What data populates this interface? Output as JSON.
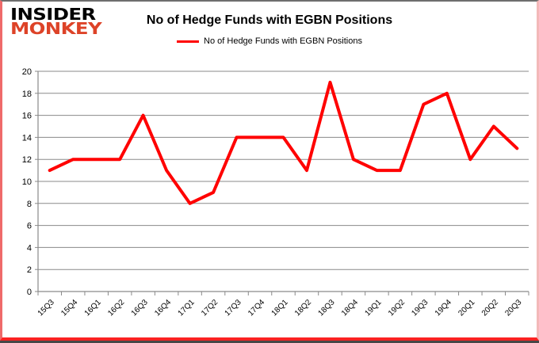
{
  "logo": {
    "line1": "INSIDER",
    "line2": "MONKEY",
    "accent_color": "#dd4328"
  },
  "header": {
    "title": "No of Hedge Funds with EGBN Positions"
  },
  "legend": {
    "label": "No of Hedge Funds with EGBN Positions",
    "line_color": "#ff0000"
  },
  "chart_data": {
    "type": "line",
    "title": "No of Hedge Funds with EGBN Positions",
    "xlabel": "",
    "ylabel": "",
    "categories": [
      "15Q3",
      "15Q4",
      "16Q1",
      "16Q2",
      "16Q3",
      "16Q4",
      "17Q1",
      "17Q2",
      "17Q3",
      "17Q4",
      "18Q1",
      "18Q2",
      "18Q3",
      "18Q4",
      "19Q1",
      "19Q2",
      "19Q3",
      "19Q4",
      "20Q1",
      "20Q2",
      "20Q3"
    ],
    "series": [
      {
        "name": "No of Hedge Funds with EGBN Positions",
        "color": "#ff0000",
        "values": [
          11,
          12,
          12,
          12,
          16,
          11,
          8,
          9,
          14,
          14,
          14,
          11,
          19,
          12,
          11,
          11,
          17,
          18,
          12,
          15,
          13
        ]
      }
    ],
    "ylim": [
      0,
      20
    ],
    "ytick_step": 2,
    "grid": true,
    "legend_position": "top",
    "axis_color": "#8a8a8a",
    "tick_label_color": "#000000"
  }
}
